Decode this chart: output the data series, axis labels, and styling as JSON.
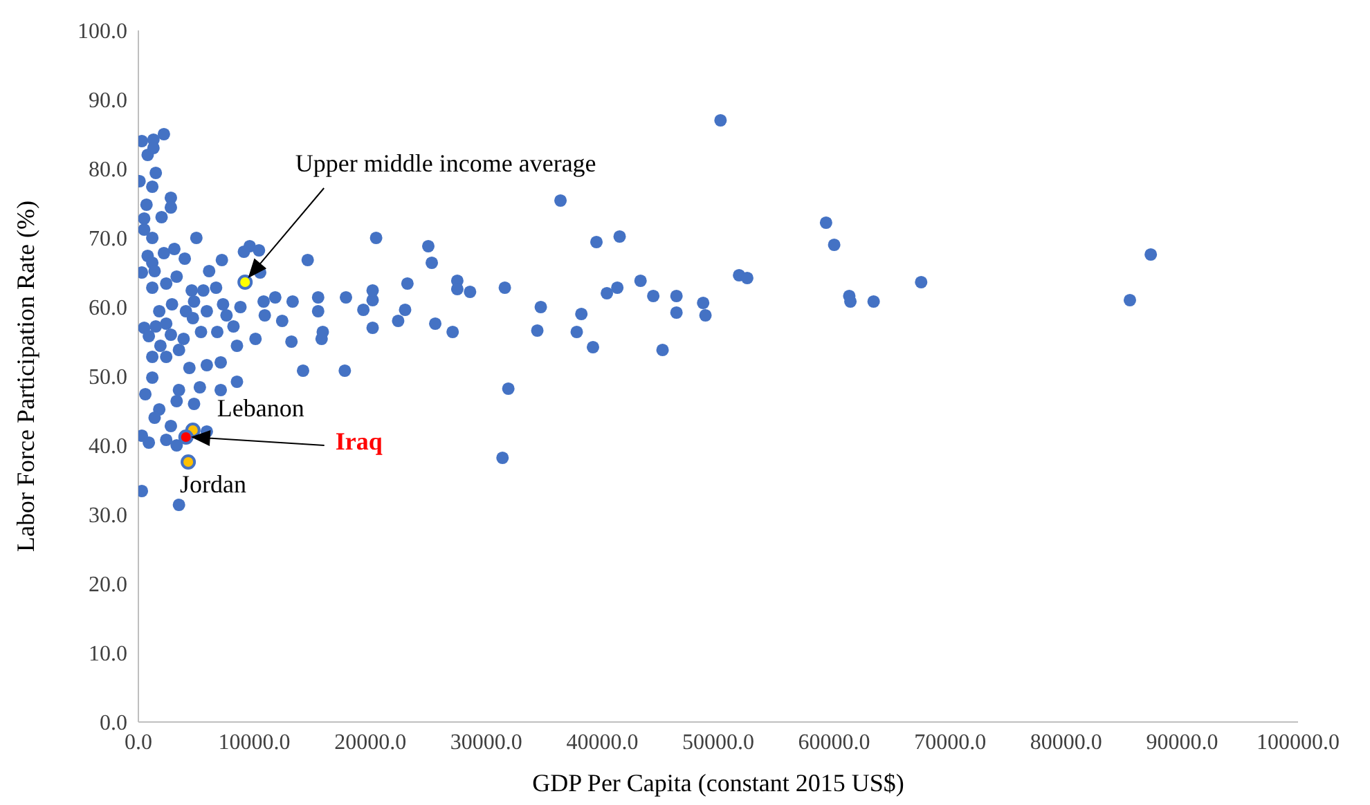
{
  "chart_data": {
    "type": "scatter",
    "xlabel": "GDP Per Capita (constant 2015 US$)",
    "ylabel": "Labor Force Participation Rate (%)",
    "xlim": [
      0,
      100000
    ],
    "ylim": [
      0,
      100
    ],
    "xticks": [
      {
        "value": 0,
        "label": "0.0"
      },
      {
        "value": 10000,
        "label": "10000.0"
      },
      {
        "value": 20000,
        "label": "20000.0"
      },
      {
        "value": 30000,
        "label": "30000.0"
      },
      {
        "value": 40000,
        "label": "40000.0"
      },
      {
        "value": 50000,
        "label": "50000.0"
      },
      {
        "value": 60000,
        "label": "60000.0"
      },
      {
        "value": 70000,
        "label": "70000.0"
      },
      {
        "value": 80000,
        "label": "80000.0"
      },
      {
        "value": 90000,
        "label": "90000.0"
      },
      {
        "value": 100000,
        "label": "100000.0"
      }
    ],
    "yticks": [
      {
        "value": 0,
        "label": "0.0"
      },
      {
        "value": 10,
        "label": "10.0"
      },
      {
        "value": 20,
        "label": "20.0"
      },
      {
        "value": 30,
        "label": "30.0"
      },
      {
        "value": 40,
        "label": "40.0"
      },
      {
        "value": 50,
        "label": "50.0"
      },
      {
        "value": 60,
        "label": "60.0"
      },
      {
        "value": 70,
        "label": "70.0"
      },
      {
        "value": 80,
        "label": "80.0"
      },
      {
        "value": 90,
        "label": "90.0"
      },
      {
        "value": 100,
        "label": "100.0"
      }
    ],
    "grid": false,
    "series": [
      {
        "color": "#4472c4",
        "x": [
          50200,
          36400,
          59300,
          60000,
          39500,
          41500,
          25000,
          20500,
          25300,
          14600,
          23200,
          27500,
          27500,
          28600,
          31600,
          43300,
          40400,
          41300,
          44400,
          46400,
          48700,
          51800,
          52500,
          61300,
          61400,
          63400,
          67500,
          85500,
          87300,
          34700,
          38200,
          46400,
          48900,
          34400,
          37800,
          39200,
          45200,
          31900,
          31400,
          25600,
          27100,
          22400,
          23000,
          19400,
          20200,
          20200,
          20200,
          17900,
          17800,
          15500,
          15500,
          15900,
          15800,
          14200,
          13300,
          11800,
          13200,
          12400,
          10800,
          10100,
          10900,
          9600,
          9100,
          10400,
          10500,
          300,
          1300,
          2200,
          800,
          1300,
          100,
          1200,
          1500,
          700,
          500,
          2000,
          2800,
          2800,
          500,
          1200,
          800,
          1200,
          300,
          1400,
          1200,
          2200,
          3100,
          4000,
          5000,
          7200,
          500,
          900,
          1500,
          2400,
          2800,
          1900,
          2400,
          3900,
          3500,
          1200,
          4700,
          5400,
          4600,
          4800,
          5600,
          6100,
          6700,
          7300,
          7600,
          8200,
          8500,
          7100,
          5900,
          4400,
          5300,
          7100,
          8500,
          1200,
          1800,
          3300,
          4800,
          3500,
          1400,
          600,
          300,
          900,
          2400,
          3300,
          5900,
          3500,
          300,
          2800,
          5900,
          8800,
          6800,
          2900,
          1800,
          4100,
          2400,
          3300
        ],
        "values": [
          87.0,
          75.4,
          72.2,
          69.0,
          69.4,
          70.2,
          68.8,
          70.0,
          66.4,
          66.8,
          63.4,
          63.8,
          62.6,
          62.2,
          62.8,
          63.8,
          62.0,
          62.8,
          61.6,
          61.6,
          60.6,
          64.6,
          64.2,
          61.6,
          60.8,
          60.8,
          63.6,
          61.0,
          67.6,
          60.0,
          59.0,
          59.2,
          58.8,
          56.6,
          56.4,
          54.2,
          53.8,
          48.2,
          38.2,
          57.6,
          56.4,
          58.0,
          59.6,
          59.6,
          57.0,
          61.0,
          62.4,
          61.4,
          50.8,
          61.4,
          59.4,
          56.4,
          55.4,
          50.8,
          60.8,
          61.4,
          55.0,
          58.0,
          60.8,
          55.4,
          58.8,
          68.8,
          68.0,
          68.2,
          65.0,
          84.0,
          84.2,
          85.0,
          82.0,
          83.0,
          78.2,
          77.4,
          79.4,
          74.8,
          72.8,
          73.0,
          75.8,
          74.4,
          71.2,
          70.0,
          67.4,
          66.4,
          65.0,
          65.2,
          62.8,
          67.8,
          68.4,
          67.0,
          70.0,
          66.8,
          57.0,
          55.8,
          57.2,
          57.6,
          56.0,
          54.4,
          52.8,
          55.4,
          53.8,
          52.8,
          58.4,
          56.4,
          62.4,
          60.8,
          62.4,
          65.2,
          62.8,
          60.4,
          58.8,
          57.2,
          54.4,
          52.0,
          51.6,
          51.2,
          48.4,
          48.0,
          49.2,
          49.8,
          45.2,
          46.4,
          46.0,
          48.0,
          44.0,
          47.4,
          41.4,
          40.4,
          40.8,
          40.0,
          42.0,
          31.4,
          33.4,
          42.8,
          59.4,
          60.0,
          56.4,
          60.4,
          59.4,
          59.4,
          63.4,
          64.4
        ]
      },
      {
        "color": "#ffff00",
        "x": [
          9200
        ],
        "values": [
          63.6
        ]
      },
      {
        "color": "#ffc000",
        "x": [
          4700
        ],
        "values": [
          42.2
        ]
      },
      {
        "color": "#ff0000",
        "x": [
          4100
        ],
        "values": [
          41.2
        ]
      },
      {
        "color": "#ffc000",
        "x": [
          4300
        ],
        "values": [
          37.6
        ]
      }
    ],
    "annotations": [
      "Upper middle income average",
      {
        "text": "Lebanon",
        "x": 4700,
        "y": 42.2
      },
      "Iraq",
      {
        "text": "Jordan",
        "x": 4300,
        "y": 37.6
      }
    ]
  }
}
